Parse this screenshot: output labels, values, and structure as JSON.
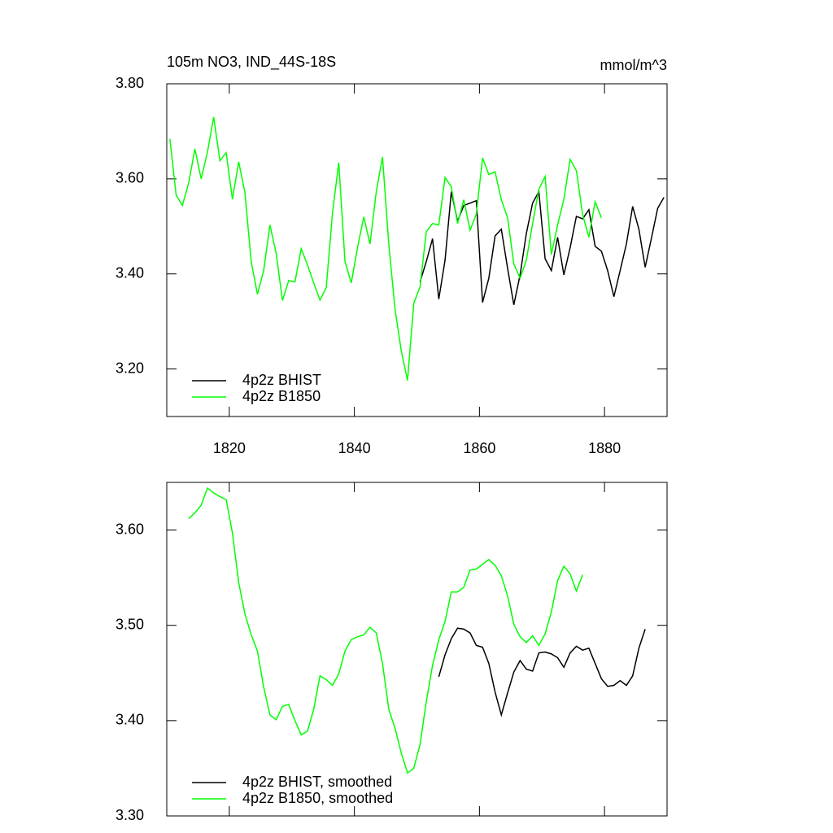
{
  "chart_data": [
    {
      "type": "line",
      "title": "105m NO3, IND_44S-18S",
      "units": "mmol/m^3",
      "xlim": [
        1810,
        1890
      ],
      "xticks": [
        1820,
        1840,
        1860,
        1880
      ],
      "ylim": [
        3.1,
        3.8
      ],
      "yticks": [
        {
          "value": 3.8,
          "label": "3.80"
        },
        {
          "value": 3.6,
          "label": "3.60"
        },
        {
          "value": 3.4,
          "label": "3.40"
        },
        {
          "value": 3.2,
          "label": "3.20"
        }
      ],
      "series": [
        {
          "name": "4p2z BHIST",
          "color": "#000000",
          "x": [
            1850.5,
            1851.5,
            1852.5,
            1853.5,
            1854.5,
            1855.5,
            1856.5,
            1857.5,
            1858.5,
            1859.5,
            1860.5,
            1861.5,
            1862.5,
            1863.5,
            1864.5,
            1865.5,
            1866.5,
            1867.5,
            1868.5,
            1869.5,
            1870.5,
            1871.5,
            1872.5,
            1873.5,
            1874.5,
            1875.5,
            1876.5,
            1877.5,
            1878.5,
            1879.5,
            1880.5,
            1881.5,
            1882.5,
            1883.5,
            1884.5,
            1885.5,
            1886.5,
            1887.5,
            1888.5,
            1889.5
          ],
          "values": [
            3.383,
            3.426,
            3.474,
            3.347,
            3.429,
            3.573,
            3.511,
            3.544,
            3.549,
            3.554,
            3.34,
            3.391,
            3.48,
            3.494,
            3.412,
            3.335,
            3.398,
            3.485,
            3.549,
            3.573,
            3.432,
            3.407,
            3.477,
            3.398,
            3.455,
            3.521,
            3.516,
            3.535,
            3.458,
            3.448,
            3.407,
            3.352,
            3.407,
            3.463,
            3.542,
            3.494,
            3.414,
            3.475,
            3.538,
            3.561
          ]
        },
        {
          "name": "4p2z B1850",
          "color": "#00ff00",
          "x": [
            1810.5,
            1811.5,
            1812.5,
            1813.5,
            1814.5,
            1815.5,
            1816.5,
            1817.5,
            1818.5,
            1819.5,
            1820.5,
            1821.5,
            1822.5,
            1823.5,
            1824.5,
            1825.5,
            1826.5,
            1827.5,
            1828.5,
            1829.5,
            1830.5,
            1831.5,
            1832.5,
            1833.5,
            1834.5,
            1835.5,
            1836.5,
            1837.5,
            1838.5,
            1839.5,
            1840.5,
            1841.5,
            1842.5,
            1843.5,
            1844.5,
            1845.5,
            1846.5,
            1847.5,
            1848.5,
            1849.5,
            1850.5,
            1851.5,
            1852.5,
            1853.5,
            1854.5,
            1855.5,
            1856.5,
            1857.5,
            1858.5,
            1859.5,
            1860.5,
            1861.5,
            1862.5,
            1863.5,
            1864.5,
            1865.5,
            1866.5,
            1867.5,
            1868.5,
            1869.5,
            1870.5,
            1871.5,
            1872.5,
            1873.5,
            1874.5,
            1875.5,
            1876.5,
            1877.5,
            1878.5,
            1879.5
          ],
          "values": [
            3.684,
            3.566,
            3.544,
            3.591,
            3.663,
            3.6,
            3.656,
            3.73,
            3.638,
            3.655,
            3.557,
            3.636,
            3.571,
            3.426,
            3.357,
            3.407,
            3.503,
            3.443,
            3.344,
            3.386,
            3.383,
            3.453,
            3.419,
            3.381,
            3.345,
            3.371,
            3.528,
            3.634,
            3.426,
            3.381,
            3.455,
            3.52,
            3.463,
            3.573,
            3.646,
            3.463,
            3.326,
            3.238,
            3.176,
            3.338,
            3.373,
            3.489,
            3.506,
            3.503,
            3.603,
            3.583,
            3.506,
            3.556,
            3.492,
            3.526,
            3.644,
            3.609,
            3.615,
            3.556,
            3.518,
            3.421,
            3.391,
            3.429,
            3.506,
            3.578,
            3.605,
            3.441,
            3.503,
            3.557,
            3.641,
            3.617,
            3.525,
            3.477,
            3.552,
            3.518
          ]
        }
      ]
    },
    {
      "type": "line",
      "xlim": [
        1810,
        1890
      ],
      "xticks": [
        1820,
        1840,
        1860,
        1880
      ],
      "ylim": [
        3.3,
        3.65
      ],
      "yticks": [
        {
          "value": 3.6,
          "label": "3.60"
        },
        {
          "value": 3.5,
          "label": "3.50"
        },
        {
          "value": 3.4,
          "label": "3.40"
        },
        {
          "value": 3.3,
          "label": "3.30"
        }
      ],
      "series": [
        {
          "name": "4p2z BHIST, smoothed",
          "color": "#000000",
          "x": [
            1853.5,
            1854.5,
            1855.5,
            1856.5,
            1857.5,
            1858.5,
            1859.5,
            1860.5,
            1861.5,
            1862.5,
            1863.5,
            1864.5,
            1865.5,
            1866.5,
            1867.5,
            1868.5,
            1869.5,
            1870.5,
            1871.5,
            1872.5,
            1873.5,
            1874.5,
            1875.5,
            1876.5,
            1877.5,
            1878.5,
            1879.5,
            1880.5,
            1881.5,
            1882.5,
            1883.5,
            1884.5,
            1885.5,
            1886.5
          ],
          "values": [
            3.446,
            3.469,
            3.486,
            3.497,
            3.496,
            3.492,
            3.479,
            3.477,
            3.46,
            3.43,
            3.406,
            3.429,
            3.451,
            3.463,
            3.454,
            3.452,
            3.471,
            3.472,
            3.47,
            3.466,
            3.456,
            3.471,
            3.478,
            3.474,
            3.476,
            3.46,
            3.444,
            3.436,
            3.437,
            3.442,
            3.437,
            3.447,
            3.476,
            3.496
          ]
        },
        {
          "name": "4p2z B1850, smoothed",
          "color": "#00ff00",
          "x": [
            1813.5,
            1814.5,
            1815.5,
            1816.5,
            1817.5,
            1818.5,
            1819.5,
            1820.5,
            1821.5,
            1822.5,
            1823.5,
            1824.5,
            1825.5,
            1826.5,
            1827.5,
            1828.5,
            1829.5,
            1830.5,
            1831.5,
            1832.5,
            1833.5,
            1834.5,
            1835.5,
            1836.5,
            1837.5,
            1838.5,
            1839.5,
            1840.5,
            1841.5,
            1842.5,
            1843.5,
            1844.5,
            1845.5,
            1846.5,
            1847.5,
            1848.5,
            1849.5,
            1850.5,
            1851.5,
            1852.5,
            1853.5,
            1854.5,
            1855.5,
            1856.5,
            1857.5,
            1858.5,
            1859.5,
            1860.5,
            1861.5,
            1862.5,
            1863.5,
            1864.5,
            1865.5,
            1866.5,
            1867.5,
            1868.5,
            1869.5,
            1870.5,
            1871.5,
            1872.5,
            1873.5,
            1874.5,
            1875.5,
            1876.5
          ],
          "values": [
            3.612,
            3.618,
            3.626,
            3.644,
            3.639,
            3.635,
            3.632,
            3.597,
            3.545,
            3.512,
            3.49,
            3.473,
            3.435,
            3.406,
            3.401,
            3.415,
            3.417,
            3.4,
            3.385,
            3.389,
            3.412,
            3.447,
            3.443,
            3.437,
            3.449,
            3.473,
            3.485,
            3.488,
            3.49,
            3.498,
            3.492,
            3.46,
            3.412,
            3.392,
            3.366,
            3.345,
            3.35,
            3.375,
            3.42,
            3.458,
            3.485,
            3.504,
            3.535,
            3.535,
            3.54,
            3.558,
            3.559,
            3.564,
            3.569,
            3.563,
            3.552,
            3.531,
            3.501,
            3.488,
            3.482,
            3.489,
            3.479,
            3.491,
            3.514,
            3.547,
            3.562,
            3.554,
            3.536,
            3.553
          ]
        }
      ]
    }
  ]
}
